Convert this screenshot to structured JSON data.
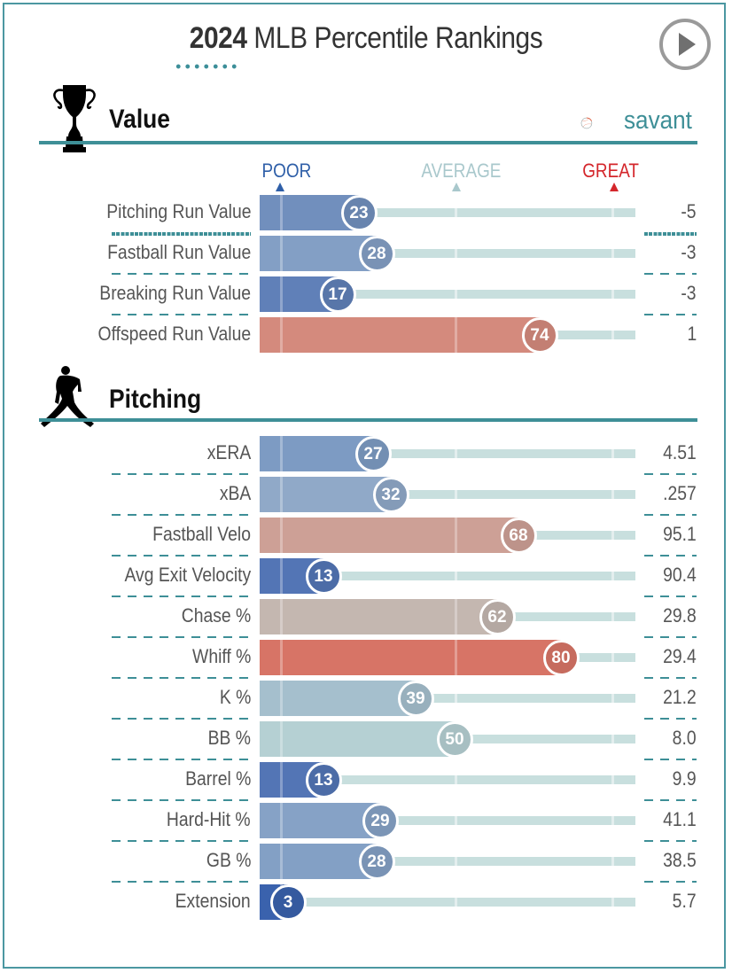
{
  "header": {
    "year": "2024",
    "title_rest": " MLB Percentile Rankings",
    "play_button": "play-icon"
  },
  "logo": {
    "text": "savant",
    "icon": "baseball-icon"
  },
  "scale": {
    "poor": "POOR",
    "average": "AVERAGE",
    "great": "GREAT"
  },
  "colors": {
    "accent": "#3e8f97",
    "poor": "#2f5fa8",
    "average": "#a9c8cc",
    "great": "#d4262b"
  },
  "chart_data": [
    {
      "type": "bar",
      "title": "Value",
      "icon": "trophy-icon",
      "categories": [
        "Pitching Run Value",
        "Fastball Run Value",
        "Breaking Run Value",
        "Offspeed Run Value"
      ],
      "percentiles": [
        23,
        28,
        17,
        74
      ],
      "values": [
        "-5",
        "-3",
        "-3",
        "1"
      ],
      "bar_colors": [
        "#718fbd",
        "#839fc5",
        "#6080b8",
        "#d48a7d"
      ],
      "xlim": [
        0,
        100
      ]
    },
    {
      "type": "bar",
      "title": "Pitching",
      "icon": "pitcher-icon",
      "categories": [
        "xERA",
        "xBA",
        "Fastball Velo",
        "Avg Exit Velocity",
        "Chase %",
        "Whiff %",
        "K %",
        "BB %",
        "Barrel %",
        "Hard-Hit %",
        "GB %",
        "Extension"
      ],
      "percentiles": [
        27,
        32,
        68,
        13,
        62,
        80,
        39,
        50,
        13,
        29,
        28,
        3
      ],
      "values": [
        "4.51",
        ".257",
        "95.1",
        "90.4",
        "29.8",
        "29.4",
        "21.2",
        "8.0",
        "9.9",
        "41.1",
        "38.5",
        "5.7"
      ],
      "bar_colors": [
        "#7d9bc3",
        "#90a9c8",
        "#cda096",
        "#5375b5",
        "#c4b7b0",
        "#d77466",
        "#a5bfcd",
        "#b5d0d3",
        "#5375b5",
        "#86a2c6",
        "#83a0c5",
        "#3a62ad"
      ],
      "xlim": [
        0,
        100
      ]
    }
  ]
}
